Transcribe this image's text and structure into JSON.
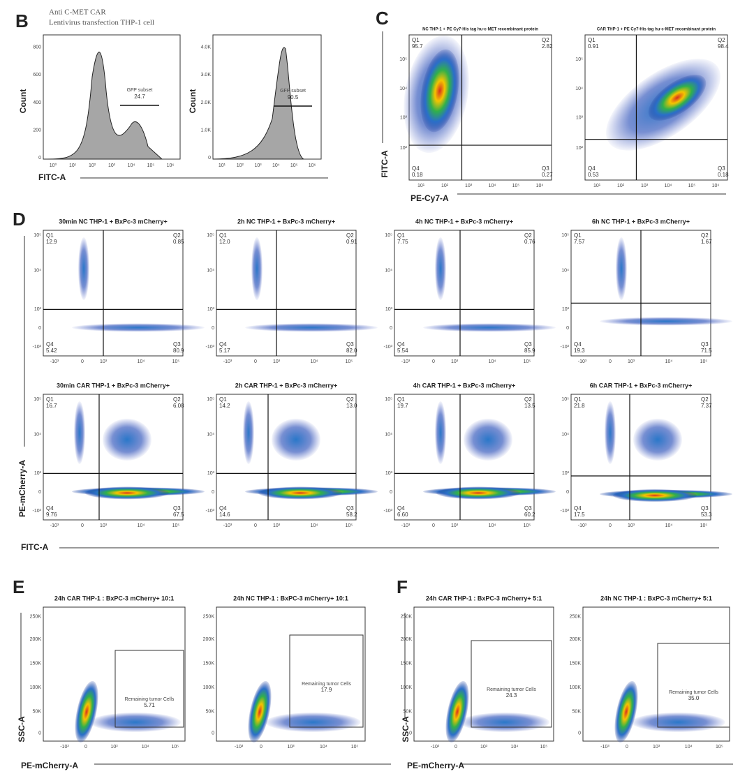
{
  "panel_b": {
    "letter": "B",
    "caption": [
      "Anti C-MET CAR",
      "Lentivirus transfection THP-1 cell"
    ],
    "x_label": "FITC-A",
    "plots": [
      {
        "y_label": "Count",
        "yticks": [
          "0",
          "200",
          "400",
          "600",
          "800"
        ],
        "xticks": [
          "10⁰",
          "10¹",
          "10²",
          "10³",
          "10⁴",
          "10⁵",
          "10⁶"
        ],
        "gate_label": "GFP subset",
        "gate_value": "24.7"
      },
      {
        "y_label": "Count",
        "yticks": [
          "0",
          "1.0K",
          "2.0K",
          "3.0K",
          "4.0K"
        ],
        "xticks": [
          "10¹",
          "10²",
          "10³",
          "10⁴",
          "10⁵",
          "10⁶"
        ],
        "gate_label": "GFP subset",
        "gate_value": "90.5"
      }
    ]
  },
  "panel_c": {
    "letter": "C",
    "x_label": "PE-Cy7-A",
    "y_label": "FITC-A",
    "yticks": [
      "10²",
      "10³",
      "10⁴",
      "10⁵"
    ],
    "xticks": [
      "10¹",
      "10²",
      "10³",
      "10⁴",
      "10⁵",
      "10⁶"
    ],
    "plots": [
      {
        "title": "NC THP-1 + PE Cy7-His tag hu-c-MET recombinant protein",
        "quadrants": [
          {
            "name": "Q1",
            "value": "95.7"
          },
          {
            "name": "Q2",
            "value": "2.82"
          },
          {
            "name": "Q3",
            "value": "0.27"
          },
          {
            "name": "Q4",
            "value": "0.18"
          }
        ]
      },
      {
        "title": "CAR THP-1 + PE Cy7-His tag hu-c-MET recombinant protein",
        "quadrants": [
          {
            "name": "Q1",
            "value": "0.91"
          },
          {
            "name": "Q2",
            "value": "98.4"
          },
          {
            "name": "Q3",
            "value": "0.18"
          },
          {
            "name": "Q4",
            "value": "0.53"
          }
        ]
      }
    ]
  },
  "panel_d": {
    "letter": "D",
    "x_label": "FITC-A",
    "y_label": "PE-mCherry-A",
    "xticks": [
      "-10³",
      "0",
      "10³",
      "10⁴",
      "10⁵"
    ],
    "yticks": [
      "-10³",
      "0",
      "10³",
      "10⁴",
      "10⁵"
    ],
    "plots": [
      {
        "title": "30min NC THP-1 + BxPc-3 mCherry+",
        "quadrants": [
          {
            "name": "Q1",
            "value": "12.9"
          },
          {
            "name": "Q2",
            "value": "0.85"
          },
          {
            "name": "Q3",
            "value": "80.9"
          },
          {
            "name": "Q4",
            "value": "5.42"
          }
        ]
      },
      {
        "title": "2h NC THP-1 + BxPc-3 mCherry+",
        "quadrants": [
          {
            "name": "Q1",
            "value": "12.0"
          },
          {
            "name": "Q2",
            "value": "0.91"
          },
          {
            "name": "Q3",
            "value": "82.0"
          },
          {
            "name": "Q4",
            "value": "5.17"
          }
        ]
      },
      {
        "title": "4h NC THP-1 + BxPc-3 mCherry+",
        "quadrants": [
          {
            "name": "Q1",
            "value": "7.75"
          },
          {
            "name": "Q2",
            "value": "0.76"
          },
          {
            "name": "Q3",
            "value": "85.9"
          },
          {
            "name": "Q4",
            "value": "5.54"
          }
        ]
      },
      {
        "title": "6h NC THP-1 + BxPc-3 mCherry+",
        "quadrants": [
          {
            "name": "Q1",
            "value": "7.57"
          },
          {
            "name": "Q2",
            "value": "1.67"
          },
          {
            "name": "Q3",
            "value": "71.5"
          },
          {
            "name": "Q4",
            "value": "19.3"
          }
        ]
      },
      {
        "title": "30min CAR THP-1 + BxPc-3 mCherry+",
        "quadrants": [
          {
            "name": "Q1",
            "value": "16.7"
          },
          {
            "name": "Q2",
            "value": "6.08"
          },
          {
            "name": "Q3",
            "value": "67.5"
          },
          {
            "name": "Q4",
            "value": "9.76"
          }
        ]
      },
      {
        "title": "2h CAR THP-1 + BxPc-3 mCherry+",
        "quadrants": [
          {
            "name": "Q1",
            "value": "14.2"
          },
          {
            "name": "Q2",
            "value": "13.0"
          },
          {
            "name": "Q3",
            "value": "58.2"
          },
          {
            "name": "Q4",
            "value": "14.6"
          }
        ]
      },
      {
        "title": "4h CAR THP-1 + BxPc-3 mCherry+",
        "quadrants": [
          {
            "name": "Q1",
            "value": "19.7"
          },
          {
            "name": "Q2",
            "value": "13.5"
          },
          {
            "name": "Q3",
            "value": "60.2"
          },
          {
            "name": "Q4",
            "value": "6.60"
          }
        ]
      },
      {
        "title": "6h CAR THP-1 + BxPc-3 mCherry+",
        "quadrants": [
          {
            "name": "Q1",
            "value": "21.8"
          },
          {
            "name": "Q2",
            "value": "7.37"
          },
          {
            "name": "Q3",
            "value": "53.3"
          },
          {
            "name": "Q4",
            "value": "17.5"
          }
        ]
      }
    ]
  },
  "panel_e": {
    "letter": "E",
    "x_label": "PE-mCherry-A",
    "y_label": "SSC-A",
    "yticks": [
      "0",
      "50K",
      "100K",
      "150K",
      "200K",
      "250K"
    ],
    "xticks": [
      "-10³",
      "0",
      "10³",
      "10⁴",
      "10⁵"
    ],
    "plots": [
      {
        "title": "24h CAR THP-1 : BxPC-3 mCherry+  10:1",
        "gate_label": "Remaining tumor Cells",
        "gate_value": "5.71"
      },
      {
        "title": "24h NC THP-1 : BxPC-3 mCherry+  10:1",
        "gate_label": "Remaining tumor Cells",
        "gate_value": "17.9"
      }
    ]
  },
  "panel_f": {
    "letter": "F",
    "x_label": "PE-mCherry-A",
    "y_label": "SSC-A",
    "yticks": [
      "0",
      "50K",
      "100K",
      "150K",
      "200K",
      "250K"
    ],
    "xticks": [
      "-10³",
      "0",
      "10³",
      "10⁴",
      "10⁵"
    ],
    "plots": [
      {
        "title": "24h CAR THP-1 : BxPC-3 mCherry+  5:1",
        "gate_label": "Remaining tumor Cells",
        "gate_value": "24.3"
      },
      {
        "title": "24h NC THP-1 : BxPC-3 mCherry+  5:1",
        "gate_label": "Remaining tumor Cells",
        "gate_value": "35.0"
      }
    ]
  }
}
